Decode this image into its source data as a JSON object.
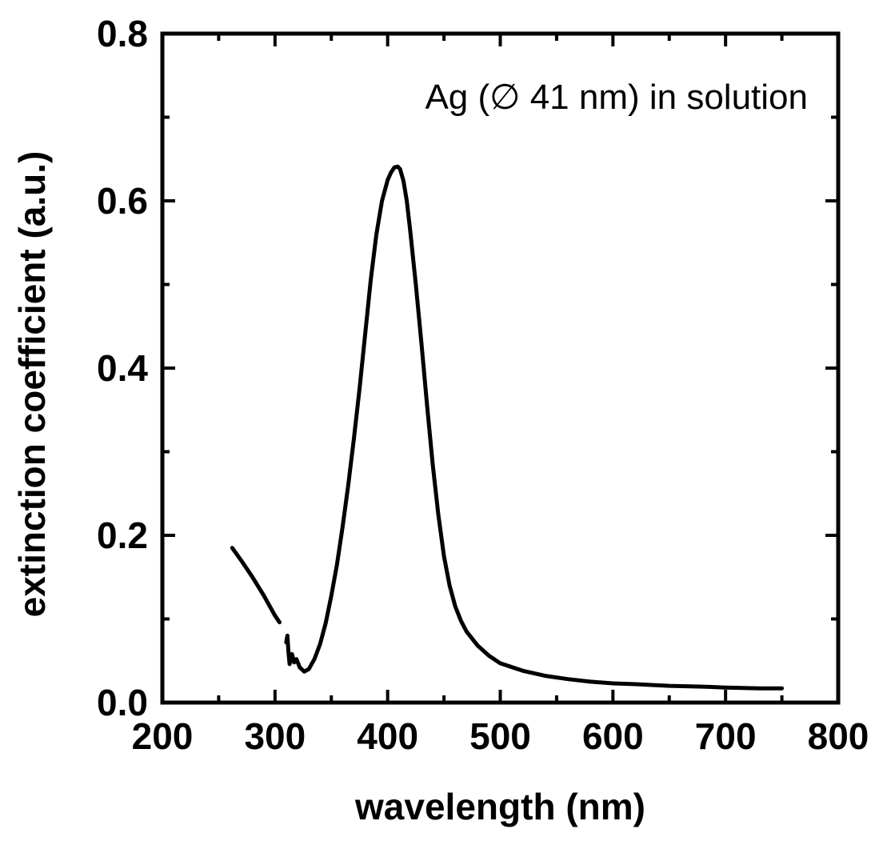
{
  "chart_data": {
    "type": "line",
    "title": "",
    "xlabel": "wavelength (nm)",
    "ylabel": "extinction coefficient (a.u.)",
    "xlim": [
      200,
      800
    ],
    "ylim": [
      0.0,
      0.8
    ],
    "xticks": [
      200,
      300,
      400,
      500,
      600,
      700,
      800
    ],
    "xtick_labels": [
      "200",
      "300",
      "400",
      "500",
      "600",
      "700",
      "800"
    ],
    "yticks": [
      0.0,
      0.2,
      0.4,
      0.6,
      0.8
    ],
    "ytick_labels": [
      "0.0",
      "0.2",
      "0.4",
      "0.6",
      "0.8"
    ],
    "grid": false,
    "legend": "none",
    "annotations": [
      {
        "text": "Ag (∅  41 nm) in solution"
      }
    ],
    "series": [
      {
        "segments": [
          {
            "x": [
              262,
              270,
              280,
              290,
              300,
              304
            ],
            "y": [
              0.185,
              0.17,
              0.15,
              0.128,
              0.104,
              0.096
            ]
          },
          {
            "x": [
              310,
              311,
              312,
              313,
              315,
              317,
              319,
              322,
              326,
              330,
              335,
              340,
              345,
              350,
              355,
              360,
              365,
              370,
              375,
              380,
              385,
              390,
              395,
              400,
              403,
              406,
              409,
              411,
              414,
              417,
              420,
              425,
              430,
              435,
              440,
              445,
              450,
              455,
              460,
              465,
              470,
              480,
              490,
              500,
              520,
              540,
              560,
              580,
              600,
              620,
              650,
              680,
              700,
              730,
              750
            ],
            "y": [
              0.072,
              0.08,
              0.06,
              0.046,
              0.058,
              0.048,
              0.052,
              0.042,
              0.037,
              0.04,
              0.052,
              0.07,
              0.095,
              0.128,
              0.165,
              0.21,
              0.26,
              0.315,
              0.375,
              0.44,
              0.505,
              0.56,
              0.6,
              0.625,
              0.634,
              0.64,
              0.641,
              0.638,
              0.624,
              0.6,
              0.565,
              0.5,
              0.43,
              0.355,
              0.285,
              0.225,
              0.175,
              0.14,
              0.115,
              0.098,
              0.085,
              0.068,
              0.056,
              0.047,
              0.038,
              0.032,
              0.028,
              0.025,
              0.023,
              0.022,
              0.02,
              0.019,
              0.018,
              0.017,
              0.017
            ]
          }
        ]
      }
    ]
  }
}
